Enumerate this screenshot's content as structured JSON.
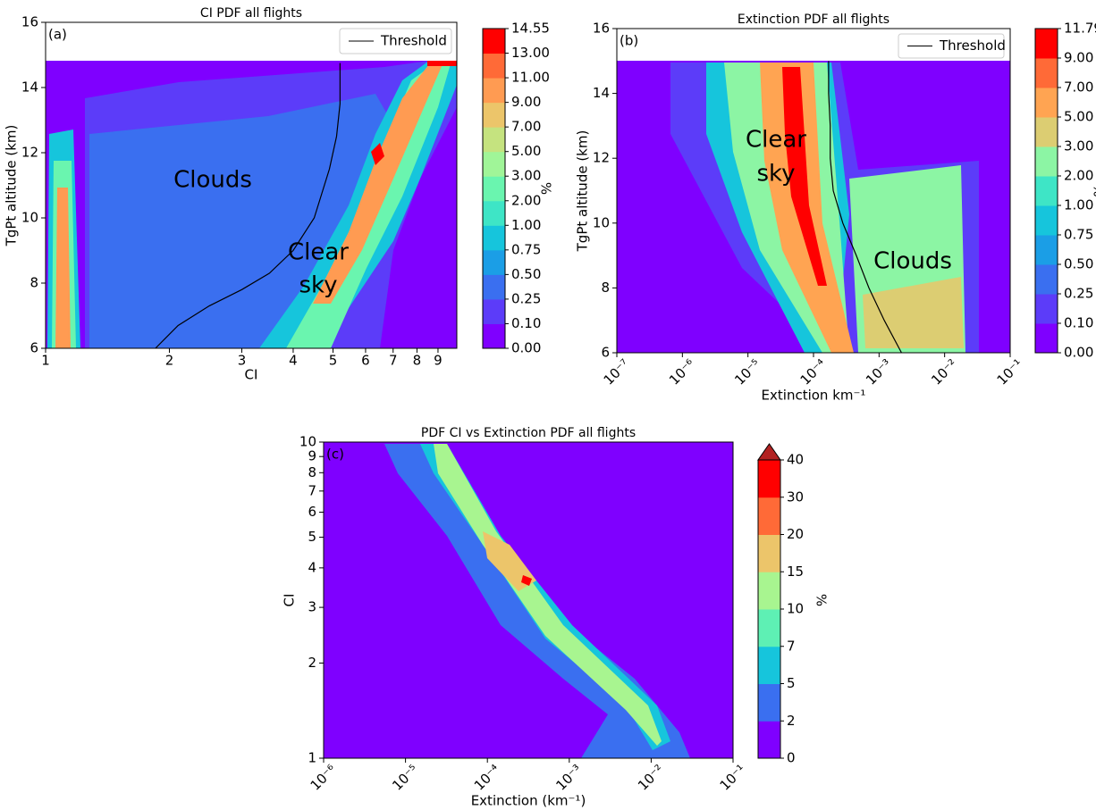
{
  "chart_data": [
    {
      "type": "heatmap",
      "title": "CI PDF all flights",
      "label": "(a)",
      "xlabel": "CI",
      "ylabel": "TgPt altitude (km)",
      "xlog": true,
      "xlim": [
        1,
        10
      ],
      "xticks": [
        1,
        2,
        3,
        4,
        5,
        6,
        7,
        8,
        9
      ],
      "ylim": [
        6,
        16
      ],
      "yticks": [
        6,
        8,
        10,
        12,
        14,
        16
      ],
      "legend": "upper right",
      "annotations": [
        "Clouds",
        "Clear",
        "sky"
      ],
      "series": [
        {
          "name": "Threshold",
          "color": "#000000",
          "x": [
            1.85,
            2.1,
            2.5,
            3,
            3.5,
            4,
            4.5,
            4.9,
            5.1,
            5.2,
            5.2
          ],
          "values": [
            6,
            6.7,
            7.3,
            7.8,
            8.3,
            9,
            10,
            11.5,
            12.5,
            13.5,
            14.75
          ]
        }
      ],
      "colorbar": {
        "label": "%",
        "levels": [
          {
            "value": 0,
            "label": "0.00"
          },
          {
            "value": 0.1,
            "label": "0.10"
          },
          {
            "value": 0.25,
            "label": "0.25"
          },
          {
            "value": 0.5,
            "label": "0.50"
          },
          {
            "value": 0.75,
            "label": "0.75"
          },
          {
            "value": 1,
            "label": "1.00"
          },
          {
            "value": 2,
            "label": "2.00"
          },
          {
            "value": 3,
            "label": "3.00"
          },
          {
            "value": 5,
            "label": "5.00"
          },
          {
            "value": 7,
            "label": "7.00"
          },
          {
            "value": 9,
            "label": "9.00"
          },
          {
            "value": 11,
            "label": "11.00"
          },
          {
            "value": 13,
            "label": "13.00"
          },
          14.55
        ],
        "colors": [
          "#7f00ff",
          "#5c3cf9",
          "#3a6ff0",
          "#1b9ee6",
          "#16c5dc",
          "#3ee5c6",
          "#6af5af",
          "#a0f598",
          "#c5e37f",
          "#ecc56a",
          "#ff9b52",
          "#ff6a37",
          "#ff0000"
        ]
      }
    },
    {
      "type": "heatmap",
      "title": "Extinction PDF all flights",
      "label": "(b)",
      "xlabel": "Extinction km⁻¹",
      "ylabel": "TgPt altitude (km)",
      "xlog": true,
      "xlim": [
        1e-07,
        0.1
      ],
      "xticks": [
        {
          "value": 1e-07,
          "label": "10⁻⁷"
        },
        {
          "value": 1e-06,
          "label": "10⁻⁶"
        },
        {
          "value": 1e-05,
          "label": "10⁻⁵"
        },
        {
          "value": 0.0001,
          "label": "10⁻⁴"
        },
        {
          "value": 0.001,
          "label": "10⁻³"
        },
        {
          "value": 0.01,
          "label": "10⁻²"
        },
        {
          "value": 0.1,
          "label": "10⁻¹"
        }
      ],
      "ylim": [
        6,
        16
      ],
      "yticks": [
        6,
        8,
        10,
        12,
        14,
        16
      ],
      "legend": "upper right",
      "annotations": [
        "Clear",
        "sky",
        "Clouds"
      ],
      "series": [
        {
          "name": "Threshold",
          "color": "#000000",
          "x": [
            0.0022,
            0.0012,
            0.0007,
            0.00045,
            0.00028,
            0.0002,
            0.00018,
            0.00018,
            0.00017,
            0.00017
          ],
          "values": [
            6,
            7,
            8,
            9,
            10,
            11,
            12,
            13,
            14,
            15
          ]
        }
      ],
      "colorbar": {
        "label": "%",
        "levels": [
          {
            "value": 0,
            "label": "0.00"
          },
          {
            "value": 0.1,
            "label": "0.10"
          },
          {
            "value": 0.25,
            "label": "0.25"
          },
          {
            "value": 0.5,
            "label": "0.50"
          },
          {
            "value": 0.75,
            "label": "0.75"
          },
          {
            "value": 1,
            "label": "1.00"
          },
          {
            "value": 2,
            "label": "2.00"
          },
          {
            "value": 3,
            "label": "3.00"
          },
          {
            "value": 5,
            "label": "5.00"
          },
          {
            "value": 7,
            "label": "7.00"
          },
          {
            "value": 9,
            "label": "9.00"
          },
          11.79
        ],
        "colors": [
          "#7f00ff",
          "#5c3cf9",
          "#3a6ff0",
          "#1b9ee6",
          "#16c5dc",
          "#3ee5c6",
          "#8cf5a4",
          "#dccd72",
          "#ffa452",
          "#ff6a37",
          "#ff0000"
        ]
      }
    },
    {
      "type": "heatmap",
      "title": "PDF CI vs Extinction  PDF all flights",
      "label": "(c)",
      "xlabel": "Extinction (km⁻¹)",
      "ylabel": "CI",
      "xlog": true,
      "xlim": [
        1e-06,
        0.1
      ],
      "xticks": [
        {
          "value": 1e-06,
          "label": "10⁻⁶"
        },
        {
          "value": 1e-05,
          "label": "10⁻⁵"
        },
        {
          "value": 0.0001,
          "label": "10⁻⁴"
        },
        {
          "value": 0.001,
          "label": "10⁻³"
        },
        {
          "value": 0.01,
          "label": "10⁻²"
        },
        {
          "value": 0.1,
          "label": "10⁻¹"
        }
      ],
      "ylog": true,
      "ylim": [
        1,
        10
      ],
      "yticks": [
        1,
        2,
        3,
        4,
        5,
        6,
        7,
        8,
        9,
        10
      ],
      "annotations": [],
      "series": [],
      "colorbar": {
        "label": "%",
        "extend": "max",
        "extend_color": "#b22222",
        "levels": [
          0,
          2,
          5,
          7,
          10,
          15,
          20,
          30,
          40
        ],
        "colors": [
          "#7f00ff",
          "#3a6ff0",
          "#16c5dc",
          "#5ef0b4",
          "#a8f590",
          "#ecc56a",
          "#ff6a37",
          "#ff0000"
        ]
      }
    }
  ]
}
